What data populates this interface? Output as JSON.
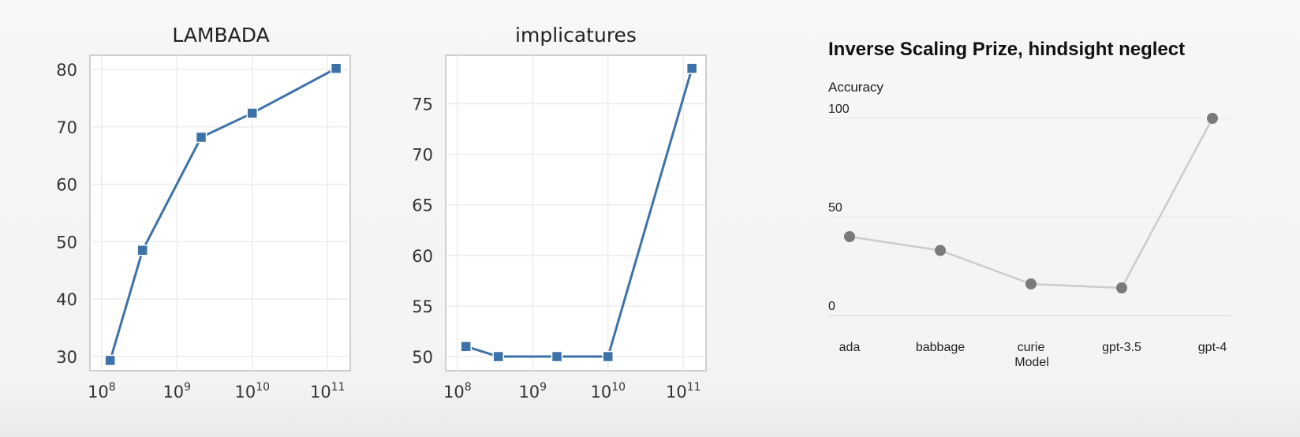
{
  "chart_data": [
    {
      "type": "line",
      "title": "LAMBADA",
      "x_scale": "log",
      "x": [
        130000000.0,
        350000000.0,
        2100000000.0,
        10000000000.0,
        130000000000.0
      ],
      "values": [
        29.3,
        48.5,
        68.2,
        72.4,
        80.2
      ],
      "xticks": [
        {
          "base": "10",
          "exp": "8",
          "value": 100000000.0
        },
        {
          "base": "10",
          "exp": "9",
          "value": 1000000000.0
        },
        {
          "base": "10",
          "exp": "10",
          "value": 10000000000.0
        },
        {
          "base": "10",
          "exp": "11",
          "value": 100000000000.0
        }
      ],
      "yticks": [
        "30",
        "40",
        "50",
        "60",
        "70",
        "80"
      ],
      "xlim": [
        70000000.0,
        200000000000.0
      ],
      "ylim": [
        27.5,
        82.5
      ],
      "marker": "square",
      "color": "#3d72a8",
      "grid": true
    },
    {
      "type": "line",
      "title": "implicatures",
      "x_scale": "log",
      "x": [
        130000000.0,
        350000000.0,
        2100000000.0,
        10000000000.0,
        130000000000.0
      ],
      "values": [
        51.0,
        50.0,
        50.0,
        50.0,
        78.5
      ],
      "xticks": [
        {
          "base": "10",
          "exp": "8",
          "value": 100000000.0
        },
        {
          "base": "10",
          "exp": "9",
          "value": 1000000000.0
        },
        {
          "base": "10",
          "exp": "10",
          "value": 10000000000.0
        },
        {
          "base": "10",
          "exp": "11",
          "value": 100000000000.0
        }
      ],
      "yticks": [
        "50",
        "55",
        "60",
        "65",
        "70",
        "75"
      ],
      "xlim": [
        70000000.0,
        200000000000.0
      ],
      "ylim": [
        48.6,
        79.8
      ],
      "marker": "square",
      "color": "#3d72a8",
      "grid": true
    },
    {
      "type": "line",
      "title": "Inverse Scaling Prize, hindsight neglect",
      "ylabel": "Accuracy",
      "xlabel": "Model",
      "categories": [
        "ada",
        "babbage",
        "curie",
        "gpt-3.5",
        "gpt-4"
      ],
      "values": [
        40,
        33,
        16,
        14,
        100
      ],
      "yticks": [
        "0",
        "50",
        "100"
      ],
      "ylim": [
        -4,
        104
      ],
      "marker": "circle",
      "color": "#7a7a7a",
      "line_color": "#cccccc",
      "grid": true
    }
  ]
}
